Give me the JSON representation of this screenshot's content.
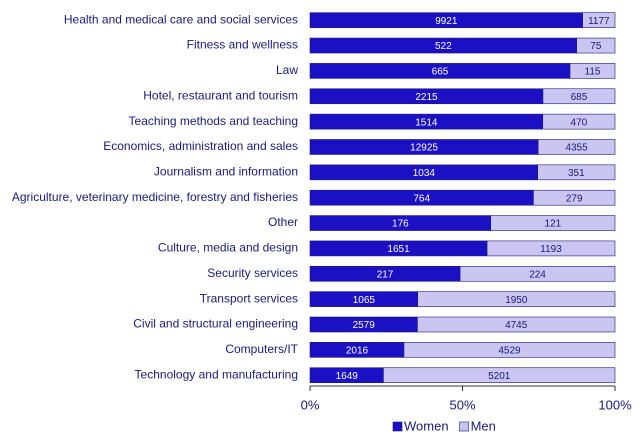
{
  "chart_data": {
    "type": "bar",
    "orientation": "horizontal",
    "stacking": "percent",
    "categories": [
      "Health and medical care and social services",
      "Fitness and wellness",
      "Law",
      "Hotel, restaurant and tourism",
      "Teaching methods and teaching",
      "Economics, administration and sales",
      "Journalism and information",
      "Agriculture, veterinary medicine, forestry and fisheries",
      "Other",
      "Culture, media and design",
      "Security services",
      "Transport services",
      "Civil and structural engineering",
      "Computers/IT",
      "Technology and manufacturing"
    ],
    "series": [
      {
        "name": "Women",
        "color": "#1c10c4",
        "values": [
          9921,
          522,
          665,
          2215,
          1514,
          12925,
          1034,
          764,
          176,
          1651,
          217,
          1065,
          2579,
          2016,
          1649
        ]
      },
      {
        "name": "Men",
        "color": "#cbc6f1",
        "values": [
          1177,
          75,
          115,
          685,
          470,
          4355,
          351,
          279,
          121,
          1193,
          224,
          1950,
          4745,
          4529,
          5201
        ]
      }
    ],
    "xlim": [
      0,
      100
    ],
    "xticks": [
      {
        "value": 0,
        "label": "0%"
      },
      {
        "value": 50,
        "label": "50%"
      },
      {
        "value": 100,
        "label": "100%"
      }
    ],
    "legend": "bottom"
  }
}
